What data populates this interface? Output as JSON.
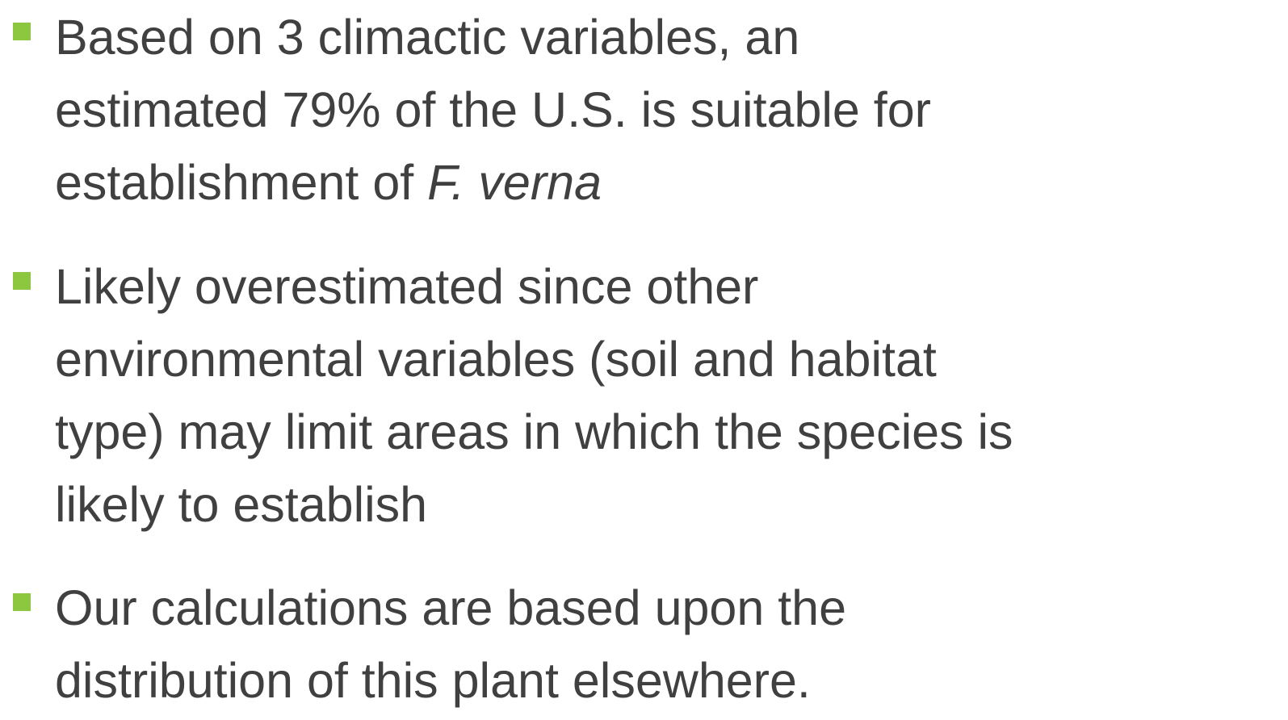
{
  "bullets": [
    {
      "lines": [
        "Based on 3 climactic variables, an",
        "estimated 79% of the U.S. is suitable for",
        "establishment of"
      ],
      "emphasis": "F. verna"
    },
    {
      "lines": [
        "Likely overestimated since other",
        "environmental variables (soil and habitat",
        "type) may limit areas in which the species is",
        "likely to establish"
      ]
    },
    {
      "lines": [
        "Our calculations are based upon the",
        "distribution of this plant elsewhere."
      ]
    }
  ]
}
